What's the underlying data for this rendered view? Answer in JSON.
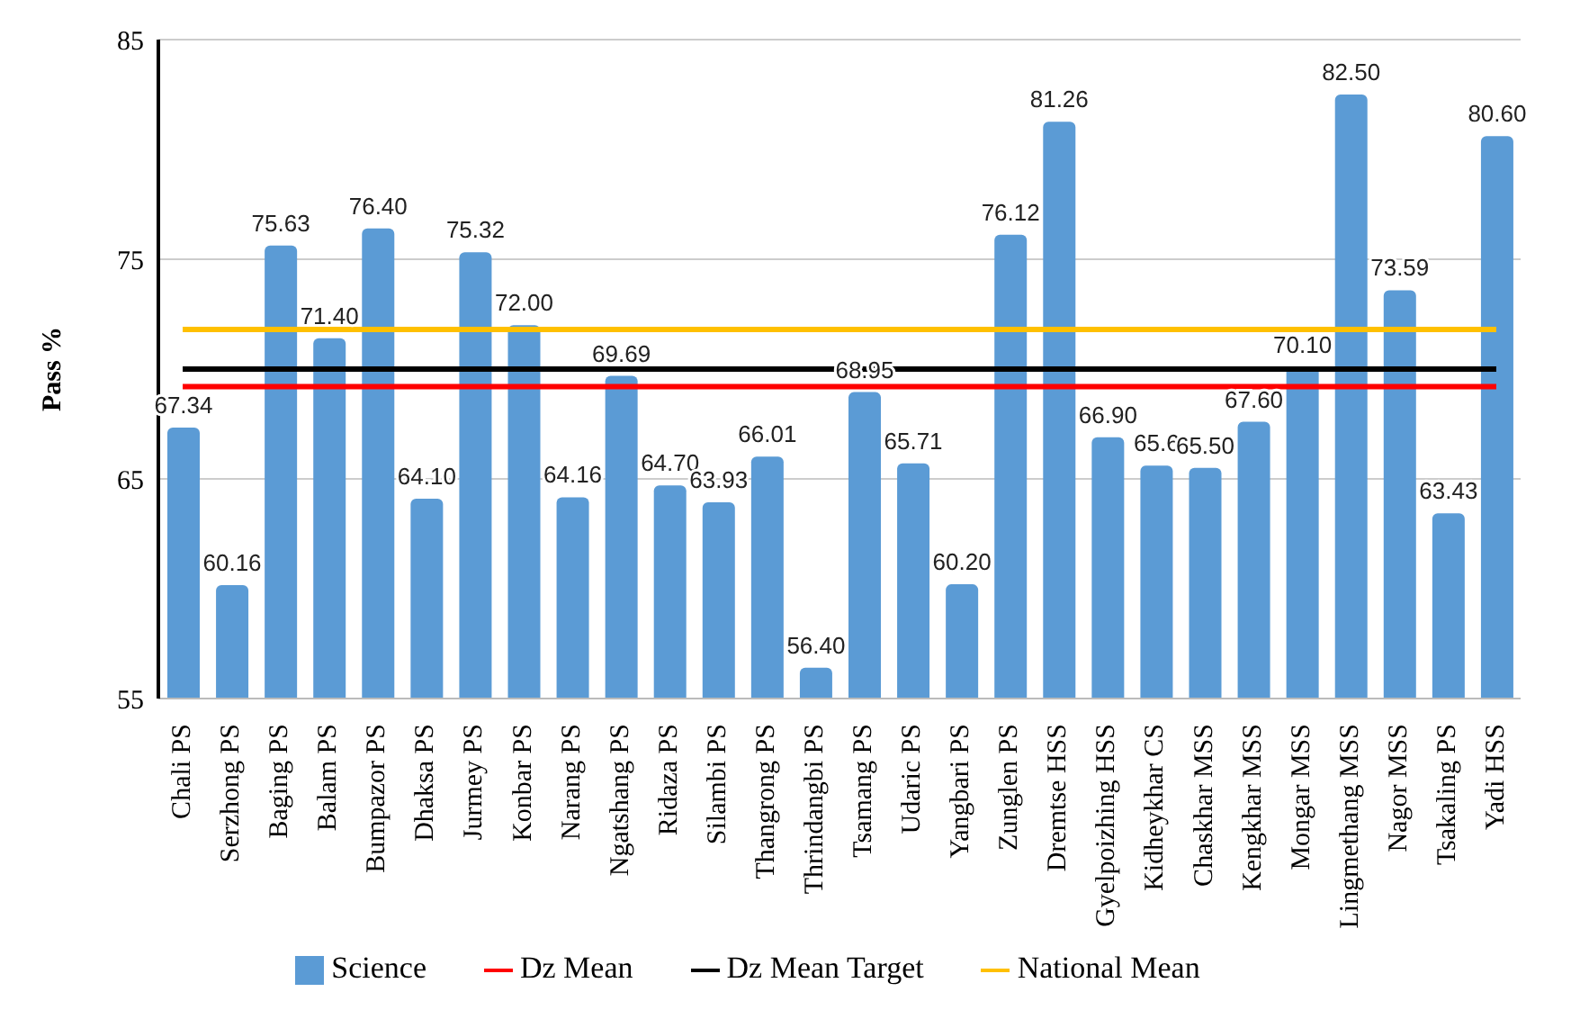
{
  "chart_data": {
    "type": "bar",
    "ylabel": "Pass %",
    "categories": [
      "Chali PS",
      "Serzhong PS",
      "Baging PS",
      "Balam PS",
      "Bumpazor PS",
      "Dhaksa PS",
      "Jurmey PS",
      "Konbar PS",
      "Narang PS",
      "Ngatshang PS",
      "Ridaza PS",
      "Silambi PS",
      "Thangrong PS",
      "Thrindangbi PS",
      "Tsamang PS",
      "Udaric PS",
      "Yangbari PS",
      "Zunglen PS",
      "Dremtse HSS",
      "Gyelpoizhing HSS",
      "Kidheykhar CS",
      "Chaskhar MSS",
      "Kengkhar MSS",
      "Mongar MSS",
      "Lingmethang MSS",
      "Nagor MSS",
      "Tsakaling PS",
      "Yadi HSS"
    ],
    "series": [
      {
        "name": "Science",
        "color": "#5b9bd5",
        "values": [
          67.34,
          60.16,
          75.63,
          71.4,
          76.4,
          64.1,
          75.32,
          72.0,
          64.16,
          69.69,
          64.7,
          63.93,
          66.01,
          56.4,
          68.95,
          65.71,
          60.2,
          76.12,
          81.26,
          66.9,
          65.6,
          65.5,
          67.6,
          70.1,
          82.5,
          73.59,
          63.43,
          80.6
        ],
        "value_labels": [
          "67.34",
          "60.16",
          "75.63",
          "71.40",
          "76.40",
          "64.10",
          "75.32",
          "72.00",
          "64.16",
          "69.69",
          "64.70",
          "63.93",
          "66.01",
          "56.40",
          "68.95",
          "65.71",
          "60.20",
          "76.12",
          "81.26",
          "66.90",
          "65.6",
          "65.50",
          "67.60",
          "70.10",
          "82.50",
          "73.59",
          "63.43",
          "80.60"
        ]
      },
      {
        "name": "Dz Mean",
        "type": "line",
        "color": "#ff0000",
        "values": [
          69.2,
          69.2,
          69.2,
          69.2,
          69.2,
          69.2,
          69.2,
          69.2,
          69.2,
          69.2,
          69.2,
          69.2,
          69.2,
          69.2,
          69.2,
          69.2,
          69.2,
          69.2,
          69.2,
          69.2,
          69.2,
          69.2,
          69.2,
          69.2,
          69.2,
          69.2,
          69.2,
          69.2
        ]
      },
      {
        "name": "Dz Mean Target",
        "type": "line",
        "color": "#000000",
        "values": [
          70.0,
          70.0,
          70.0,
          70.0,
          70.0,
          70.0,
          70.0,
          70.0,
          70.0,
          70.0,
          70.0,
          70.0,
          70.0,
          70.0,
          70.0,
          70.0,
          70.0,
          70.0,
          70.0,
          70.0,
          70.0,
          70.0,
          70.0,
          70.0,
          70.0,
          70.0,
          70.0,
          70.0
        ]
      },
      {
        "name": "National Mean",
        "type": "line",
        "color": "#ffc000",
        "values": [
          71.8,
          71.8,
          71.8,
          71.8,
          71.8,
          71.8,
          71.8,
          71.8,
          71.8,
          71.8,
          71.8,
          71.8,
          71.8,
          71.8,
          71.8,
          71.8,
          71.8,
          71.8,
          71.8,
          71.8,
          71.8,
          71.8,
          71.8,
          71.8,
          71.8,
          71.8,
          71.8,
          71.8
        ]
      }
    ],
    "ylim": [
      55,
      85
    ],
    "yticks": [
      55,
      65,
      75,
      85
    ],
    "grid": "y",
    "legend": "bottom",
    "marker": "none"
  }
}
